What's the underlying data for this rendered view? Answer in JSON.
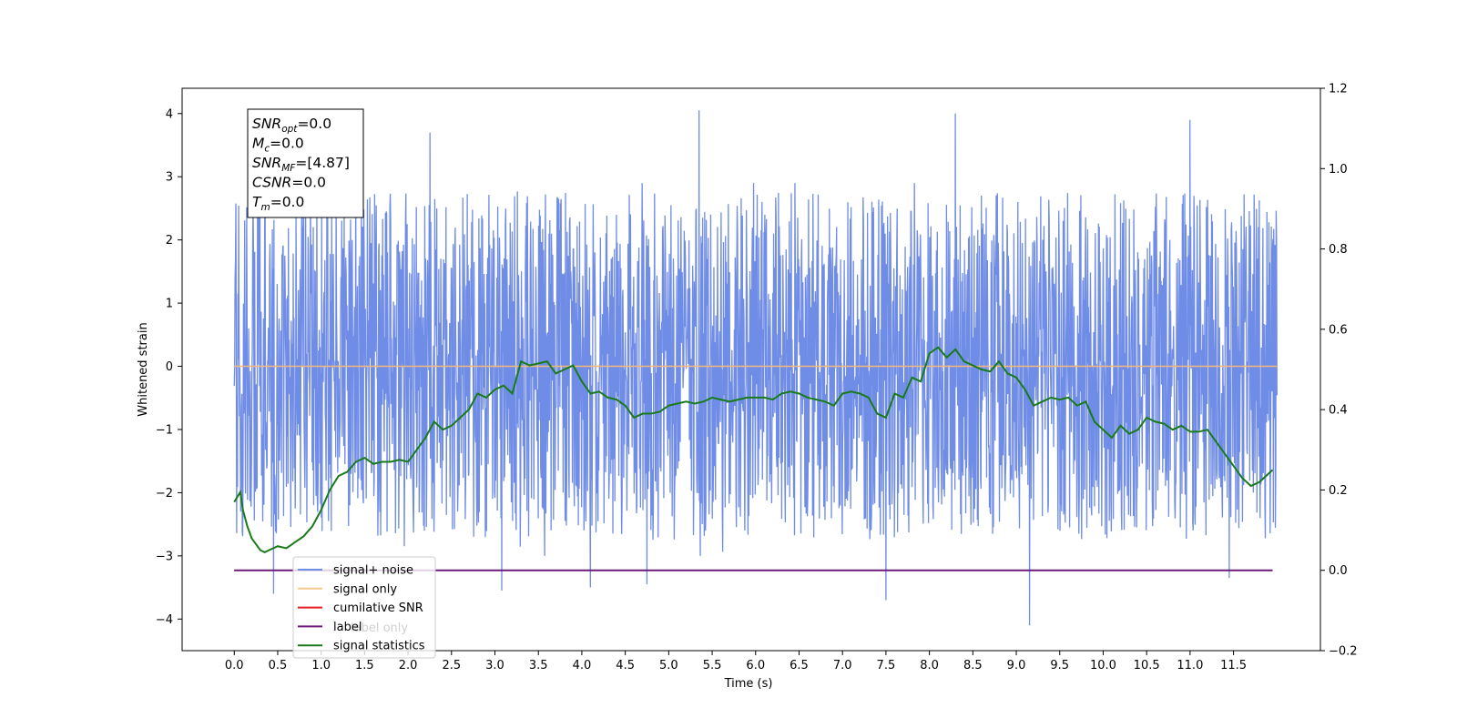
{
  "chart_data": {
    "type": "line",
    "title": "",
    "xlabel": "Time (s)",
    "ylabel": "Whitened strain",
    "xlim": [
      -0.6,
      12.5
    ],
    "ylim": [
      -4.5,
      4.4
    ],
    "y2lim": [
      -0.2,
      1.2
    ],
    "grid": false,
    "legend_position": "lower-left",
    "x_ticks": [
      0.0,
      0.5,
      1.0,
      1.5,
      2.0,
      2.5,
      3.0,
      3.5,
      4.0,
      4.5,
      5.0,
      5.5,
      6.0,
      6.5,
      7.0,
      7.5,
      8.0,
      8.5,
      9.0,
      9.5,
      10.0,
      10.5,
      11.0,
      11.5
    ],
    "x_tick_labels": [
      "0.0",
      "0.5",
      "1.0",
      "1.5",
      "2.0",
      "2.5",
      "3.0",
      "3.5",
      "4.0",
      "4.5",
      "5.0",
      "5.5",
      "6.0",
      "6.5",
      "7.0",
      "7.5",
      "8.0",
      "8.5",
      "9.0",
      "9.5",
      "10.0",
      "10.5",
      "11.0",
      "11.5"
    ],
    "y_ticks": [
      -4,
      -3,
      -2,
      -1,
      0,
      1,
      2,
      3,
      4
    ],
    "y_tick_labels": [
      "−4",
      "−3",
      "−2",
      "−1",
      "0",
      "1",
      "2",
      "3",
      "4"
    ],
    "y2_ticks": [
      -0.2,
      0.0,
      0.2,
      0.4,
      0.6,
      0.8,
      1.0,
      1.2
    ],
    "y2_tick_labels": [
      "−0.2",
      "0.0",
      "0.2",
      "0.4",
      "0.6",
      "0.8",
      "1.0",
      "1.2"
    ],
    "noise_series": {
      "name": "signal+ noise",
      "color": "#6f8ce6",
      "x_start": 0.0,
      "x_end": 12.0,
      "typical_range": [
        -1.5,
        1.5
      ],
      "max_abs": 4.1,
      "spikes": [
        {
          "x": 0.45,
          "y": -3.6
        },
        {
          "x": 0.95,
          "y": 3.0
        },
        {
          "x": 1.4,
          "y": 3.2
        },
        {
          "x": 2.25,
          "y": 3.7
        },
        {
          "x": 3.08,
          "y": -3.55
        },
        {
          "x": 4.1,
          "y": -3.5
        },
        {
          "x": 4.75,
          "y": -3.45
        },
        {
          "x": 5.35,
          "y": 4.05
        },
        {
          "x": 7.5,
          "y": -3.7
        },
        {
          "x": 8.3,
          "y": 4.0
        },
        {
          "x": 9.15,
          "y": -4.1
        },
        {
          "x": 11.0,
          "y": 3.9
        },
        {
          "x": 11.45,
          "y": -3.35
        }
      ]
    },
    "signal_only": {
      "name": "signal only",
      "color": "#f5b87a",
      "x": [
        0.0,
        12.0
      ],
      "y": [
        0.0,
        0.0
      ]
    },
    "cumulative_snr": {
      "name": "cumilative SNR",
      "color": "#e81c1c",
      "axis": "right",
      "x": [
        0.0,
        11.95
      ],
      "y": [
        0.0,
        0.0
      ]
    },
    "label": {
      "name": "label",
      "color": "#6c1a7a",
      "axis": "right",
      "x": [
        0.0,
        11.95
      ],
      "y": [
        0.0,
        0.0
      ]
    },
    "signal_statistics": {
      "name": "signal statistics",
      "color": "#1a7a1a",
      "axis": "right",
      "x": [
        0.0,
        0.07,
        0.1,
        0.15,
        0.2,
        0.3,
        0.35,
        0.4,
        0.5,
        0.6,
        0.7,
        0.8,
        0.9,
        1.0,
        1.1,
        1.2,
        1.3,
        1.4,
        1.5,
        1.6,
        1.7,
        1.8,
        1.9,
        2.0,
        2.1,
        2.2,
        2.3,
        2.4,
        2.5,
        2.6,
        2.7,
        2.8,
        2.9,
        3.0,
        3.1,
        3.2,
        3.3,
        3.4,
        3.5,
        3.6,
        3.7,
        3.8,
        3.9,
        4.0,
        4.1,
        4.2,
        4.3,
        4.4,
        4.5,
        4.6,
        4.7,
        4.8,
        4.9,
        5.0,
        5.1,
        5.2,
        5.3,
        5.4,
        5.5,
        5.6,
        5.7,
        5.8,
        5.9,
        6.0,
        6.1,
        6.2,
        6.3,
        6.4,
        6.5,
        6.6,
        6.7,
        6.8,
        6.9,
        7.0,
        7.1,
        7.2,
        7.3,
        7.4,
        7.5,
        7.6,
        7.7,
        7.8,
        7.9,
        8.0,
        8.1,
        8.2,
        8.3,
        8.4,
        8.5,
        8.6,
        8.7,
        8.8,
        8.9,
        9.0,
        9.1,
        9.2,
        9.3,
        9.4,
        9.5,
        9.6,
        9.7,
        9.8,
        9.9,
        10.0,
        10.1,
        10.2,
        10.3,
        10.4,
        10.5,
        10.6,
        10.7,
        10.8,
        10.9,
        11.0,
        11.1,
        11.2,
        11.3,
        11.4,
        11.5,
        11.6,
        11.7,
        11.8,
        11.9,
        11.95
      ],
      "y": [
        0.17,
        0.195,
        0.15,
        0.11,
        0.08,
        0.05,
        0.045,
        0.05,
        0.06,
        0.055,
        0.07,
        0.085,
        0.11,
        0.15,
        0.2,
        0.235,
        0.245,
        0.27,
        0.28,
        0.265,
        0.27,
        0.27,
        0.275,
        0.27,
        0.3,
        0.33,
        0.37,
        0.35,
        0.36,
        0.38,
        0.4,
        0.44,
        0.43,
        0.45,
        0.46,
        0.44,
        0.52,
        0.51,
        0.515,
        0.52,
        0.49,
        0.5,
        0.51,
        0.47,
        0.44,
        0.445,
        0.43,
        0.425,
        0.41,
        0.38,
        0.39,
        0.39,
        0.395,
        0.41,
        0.415,
        0.42,
        0.415,
        0.42,
        0.43,
        0.425,
        0.42,
        0.425,
        0.43,
        0.43,
        0.43,
        0.425,
        0.44,
        0.445,
        0.44,
        0.43,
        0.425,
        0.42,
        0.41,
        0.44,
        0.445,
        0.44,
        0.43,
        0.39,
        0.38,
        0.44,
        0.43,
        0.48,
        0.47,
        0.54,
        0.555,
        0.53,
        0.55,
        0.52,
        0.51,
        0.5,
        0.495,
        0.52,
        0.49,
        0.48,
        0.45,
        0.41,
        0.42,
        0.43,
        0.425,
        0.43,
        0.41,
        0.42,
        0.37,
        0.35,
        0.33,
        0.36,
        0.34,
        0.35,
        0.38,
        0.37,
        0.365,
        0.35,
        0.36,
        0.345,
        0.345,
        0.35,
        0.32,
        0.29,
        0.26,
        0.23,
        0.21,
        0.22,
        0.24,
        0.25
      ]
    },
    "annotation_box": {
      "lines": [
        {
          "main": "SNR",
          "sub": "opt",
          "rest": "=0.0"
        },
        {
          "main": "M",
          "sub": "c",
          "rest": "=0.0"
        },
        {
          "main": "SNR",
          "sub": "MF",
          "rest": "=[4.87]"
        },
        {
          "main": "CSNR",
          "sub": "",
          "rest": "=0.0"
        },
        {
          "main": "T",
          "sub": "m",
          "rest": "=0.0"
        }
      ]
    },
    "legend": {
      "entries": [
        {
          "label": "signal+ noise",
          "color": "#6f8ce6"
        },
        {
          "label": "signal only",
          "color": "#f5c98a"
        },
        {
          "label": "cumilative SNR",
          "color": "#e81c1c"
        },
        {
          "label": "label",
          "color": "#6c1a7a"
        },
        {
          "label": "signal statistics",
          "color": "#1a7a1a"
        }
      ],
      "hidden_behind_text": [
        "label only"
      ]
    }
  }
}
